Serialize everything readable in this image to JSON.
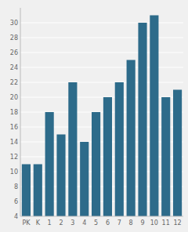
{
  "chart_data": {
    "type": "bar",
    "categories": [
      "PK",
      "K",
      "1",
      "2",
      "3",
      "4",
      "5",
      "6",
      "7",
      "8",
      "9",
      "10",
      "11",
      "12"
    ],
    "values": [
      11,
      11,
      18,
      15,
      22,
      14,
      18,
      20,
      22,
      25,
      30,
      31,
      20,
      21
    ],
    "color": "#2d6b8a",
    "ylim": [
      4,
      32
    ],
    "yticks": [
      4,
      6,
      8,
      10,
      12,
      14,
      16,
      18,
      20,
      22,
      24,
      26,
      28,
      30
    ],
    "grid": true
  }
}
